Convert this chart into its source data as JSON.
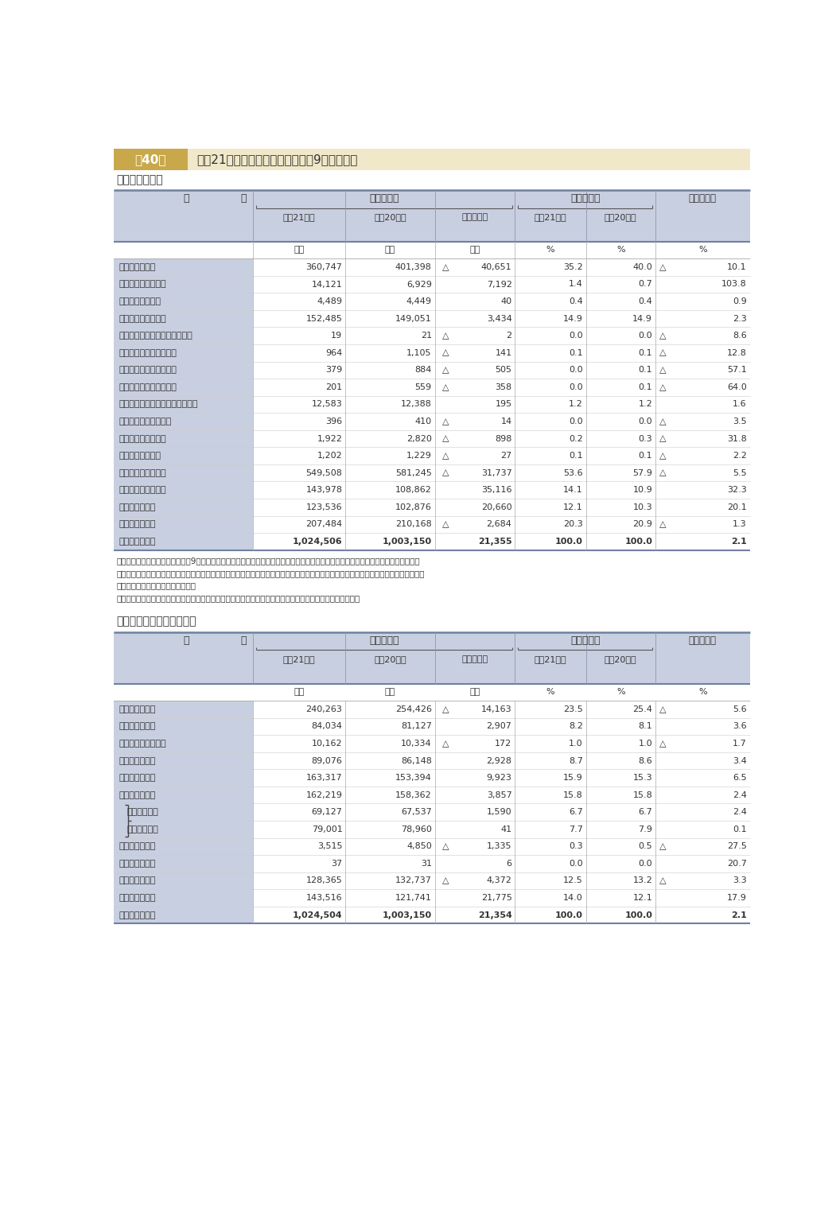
{
  "title_box_color": "#c8a84b",
  "title_tag": "第40表",
  "title_main": "平成21年度普通会計予算の状況（9月補正後）",
  "header_bg": "#c8cfe0",
  "table_bg": "#ffffff",
  "section1_label": "その１　歳　入",
  "section2_label": "その２　歳　出（性質別）",
  "notes": [
    "（注）１　この数値は、各年度の9月補正後予算額の単純合計であり、前年度からの繰越事業に係るものを含む。その２において同じ。",
    "　　　２　「地方税」のうちの地方消費税は、都道府県間の清算を行った後の額である。したがって、地方消費税清算金は、歳入、歳出い",
    "　　　　　ずれにも計上されない。",
    "　　　３　「国庫支出金」には、交通安全対策特別交付金及び国有提供施設等所在市町村助成交付金を含む。"
  ],
  "table1_rows": [
    {
      "label": "地　　方　　税",
      "v21": "360,747",
      "v20": "401,398",
      "zm": "△",
      "zv": "40,651",
      "r21": "35.2",
      "r20": "40.0",
      "rm": "△",
      "rv": "10.1",
      "bold": false
    },
    {
      "label": "地　方　譲　与　税",
      "v21": "14,121",
      "v20": "6,929",
      "zm": "",
      "zv": "7,192",
      "r21": "1.4",
      "r20": "0.7",
      "rm": "",
      "rv": "103.8",
      "bold": false
    },
    {
      "label": "地方特例交付金等",
      "v21": "4,489",
      "v20": "4,449",
      "zm": "",
      "zv": "40",
      "r21": "0.4",
      "r20": "0.4",
      "rm": "",
      "rv": "0.9",
      "bold": false
    },
    {
      "label": "地　方　交　付　税",
      "v21": "152,485",
      "v20": "149,051",
      "zm": "",
      "zv": "3,434",
      "r21": "14.9",
      "r20": "14.9",
      "rm": "",
      "rv": "2.3",
      "bold": false
    },
    {
      "label": "市町村たばこ税都道府県交付金",
      "v21": "19",
      "v20": "21",
      "zm": "△",
      "zv": "2",
      "r21": "0.0",
      "r20": "0.0",
      "rm": "△",
      "rv": "8.6",
      "bold": false
    },
    {
      "label": "利　子　割　交　付　金",
      "v21": "964",
      "v20": "1,105",
      "zm": "△",
      "zv": "141",
      "r21": "0.1",
      "r20": "0.1",
      "rm": "△",
      "rv": "12.8",
      "bold": false
    },
    {
      "label": "配　当　割　交　付　金",
      "v21": "379",
      "v20": "884",
      "zm": "△",
      "zv": "505",
      "r21": "0.0",
      "r20": "0.1",
      "rm": "△",
      "rv": "57.1",
      "bold": false
    },
    {
      "label": "株式等譲渡所得割交付金",
      "v21": "201",
      "v20": "559",
      "zm": "△",
      "zv": "358",
      "r21": "0.0",
      "r20": "0.1",
      "rm": "△",
      "rv": "64.0",
      "bold": false
    },
    {
      "label": "地　方　消　費　税　交　付　金",
      "v21": "12,583",
      "v20": "12,388",
      "zm": "",
      "zv": "195",
      "r21": "1.2",
      "r20": "1.2",
      "rm": "",
      "rv": "1.6",
      "bold": false
    },
    {
      "label": "ゴルフ場利用税交付金",
      "v21": "396",
      "v20": "410",
      "zm": "△",
      "zv": "14",
      "r21": "0.0",
      "r20": "0.0",
      "rm": "△",
      "rv": "3.5",
      "bold": false
    },
    {
      "label": "自動車取得税交付金",
      "v21": "1,922",
      "v20": "2,820",
      "zm": "△",
      "zv": "898",
      "r21": "0.2",
      "r20": "0.3",
      "rm": "△",
      "rv": "31.8",
      "bold": false
    },
    {
      "label": "軽油引取税交付金",
      "v21": "1,202",
      "v20": "1,229",
      "zm": "△",
      "zv": "27",
      "r21": "0.1",
      "r20": "0.1",
      "rm": "△",
      "rv": "2.2",
      "bold": false
    },
    {
      "label": "　小計（一般財源）",
      "v21": "549,508",
      "v20": "581,245",
      "zm": "△",
      "zv": "31,737",
      "r21": "53.6",
      "r20": "57.9",
      "rm": "△",
      "rv": "5.5",
      "bold": false
    },
    {
      "label": "国　庫　支　出　金",
      "v21": "143,978",
      "v20": "108,862",
      "zm": "",
      "zv": "35,116",
      "r21": "14.1",
      "r20": "10.9",
      "rm": "",
      "rv": "32.3",
      "bold": false
    },
    {
      "label": "地　　方　　債",
      "v21": "123,536",
      "v20": "102,876",
      "zm": "",
      "zv": "20,660",
      "r21": "12.1",
      "r20": "10.3",
      "rm": "",
      "rv": "20.1",
      "bold": false
    },
    {
      "label": "そ　　の　　他",
      "v21": "207,484",
      "v20": "210,168",
      "zm": "△",
      "zv": "2,684",
      "r21": "20.3",
      "r20": "20.9",
      "rm": "△",
      "rv": "1.3",
      "bold": false
    },
    {
      "label": "歳　入　合　計",
      "v21": "1,024,506",
      "v20": "1,003,150",
      "zm": "",
      "zv": "21,355",
      "r21": "100.0",
      "r20": "100.0",
      "rm": "",
      "rv": "2.1",
      "bold": true
    }
  ],
  "table2_rows": [
    {
      "label": "人　　件　　費",
      "v21": "240,263",
      "v20": "254,426",
      "zm": "△",
      "zv": "14,163",
      "r21": "23.5",
      "r20": "25.4",
      "rm": "△",
      "rv": "5.6",
      "bold": false,
      "sub": false
    },
    {
      "label": "物　　件　　費",
      "v21": "84,034",
      "v20": "81,127",
      "zm": "",
      "zv": "2,907",
      "r21": "8.2",
      "r20": "8.1",
      "rm": "",
      "rv": "3.6",
      "bold": false,
      "sub": false
    },
    {
      "label": "維　持　補　修　費",
      "v21": "10,162",
      "v20": "10,334",
      "zm": "△",
      "zv": "172",
      "r21": "1.0",
      "r20": "1.0",
      "rm": "△",
      "rv": "1.7",
      "bold": false,
      "sub": false
    },
    {
      "label": "扶　　助　　費",
      "v21": "89,076",
      "v20": "86,148",
      "zm": "",
      "zv": "2,928",
      "r21": "8.7",
      "r20": "8.6",
      "rm": "",
      "rv": "3.4",
      "bold": false,
      "sub": false
    },
    {
      "label": "補　助　費　等",
      "v21": "163,317",
      "v20": "153,394",
      "zm": "",
      "zv": "9,923",
      "r21": "15.9",
      "r20": "15.3",
      "rm": "",
      "rv": "6.5",
      "bold": false,
      "sub": false
    },
    {
      "label": "普通建設事業費",
      "v21": "162,219",
      "v20": "158,362",
      "zm": "",
      "zv": "3,857",
      "r21": "15.8",
      "r20": "15.8",
      "rm": "",
      "rv": "2.4",
      "bold": false,
      "sub": false
    },
    {
      "label": "　補助事業費",
      "v21": "69,127",
      "v20": "67,537",
      "zm": "",
      "zv": "1,590",
      "r21": "6.7",
      "r20": "6.7",
      "rm": "",
      "rv": "2.4",
      "bold": false,
      "sub": true
    },
    {
      "label": "　単独事業費",
      "v21": "79,001",
      "v20": "78,960",
      "zm": "",
      "zv": "41",
      "r21": "7.7",
      "r20": "7.9",
      "rm": "",
      "rv": "0.1",
      "bold": false,
      "sub": true
    },
    {
      "label": "災害復旧事業費",
      "v21": "3,515",
      "v20": "4,850",
      "zm": "△",
      "zv": "1,335",
      "r21": "0.3",
      "r20": "0.5",
      "rm": "△",
      "rv": "27.5",
      "bold": false,
      "sub": false
    },
    {
      "label": "失業対策事業費",
      "v21": "37",
      "v20": "31",
      "zm": "",
      "zv": "6",
      "r21": "0.0",
      "r20": "0.0",
      "rm": "",
      "rv": "20.7",
      "bold": false,
      "sub": false
    },
    {
      "label": "公　　債　　費",
      "v21": "128,365",
      "v20": "132,737",
      "zm": "△",
      "zv": "4,372",
      "r21": "12.5",
      "r20": "13.2",
      "rm": "△",
      "rv": "3.3",
      "bold": false,
      "sub": false
    },
    {
      "label": "そ　　の　　他",
      "v21": "143,516",
      "v20": "121,741",
      "zm": "",
      "zv": "21,775",
      "r21": "14.0",
      "r20": "12.1",
      "rm": "",
      "rv": "17.9",
      "bold": false,
      "sub": false
    },
    {
      "label": "歳　出　合　計",
      "v21": "1,024,504",
      "v20": "1,003,150",
      "zm": "",
      "zv": "21,354",
      "r21": "100.0",
      "r20": "100.0",
      "rm": "",
      "rv": "2.1",
      "bold": true,
      "sub": false
    }
  ]
}
